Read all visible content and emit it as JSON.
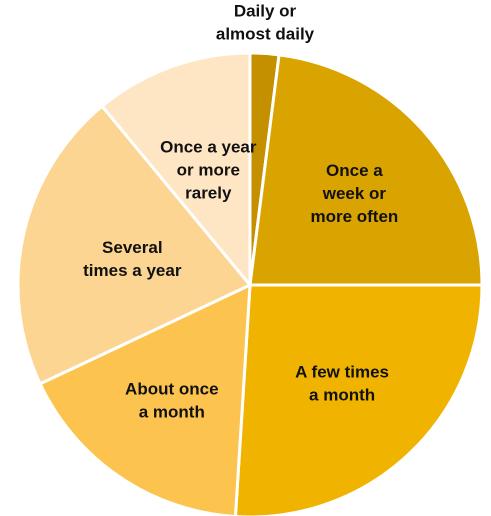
{
  "chart_data": {
    "type": "pie",
    "title": "",
    "slices": [
      {
        "label": "Daily or almost daily",
        "label_lines": [
          "Daily or",
          "almost daily"
        ],
        "value": 2,
        "color": "#c49000"
      },
      {
        "label": "Once a week or more often",
        "label_lines": [
          "Once a",
          "week or",
          "more often"
        ],
        "value": 23,
        "color": "#d9a300"
      },
      {
        "label": "A few times a month",
        "label_lines": [
          "A few times",
          "a month"
        ],
        "value": 26,
        "color": "#f0b400"
      },
      {
        "label": "About once a month",
        "label_lines": [
          "About once",
          "a month"
        ],
        "value": 17,
        "color": "#fcc44f"
      },
      {
        "label": "Several times a year",
        "label_lines": [
          "Several",
          "times a year"
        ],
        "value": 21,
        "color": "#fdd592"
      },
      {
        "label": "Once a year or more rarely",
        "label_lines": [
          "Once a year",
          "or more",
          "rarely"
        ],
        "value": 11,
        "color": "#fee6c5"
      }
    ],
    "legend": "none",
    "labels": "inside-and-outside"
  }
}
